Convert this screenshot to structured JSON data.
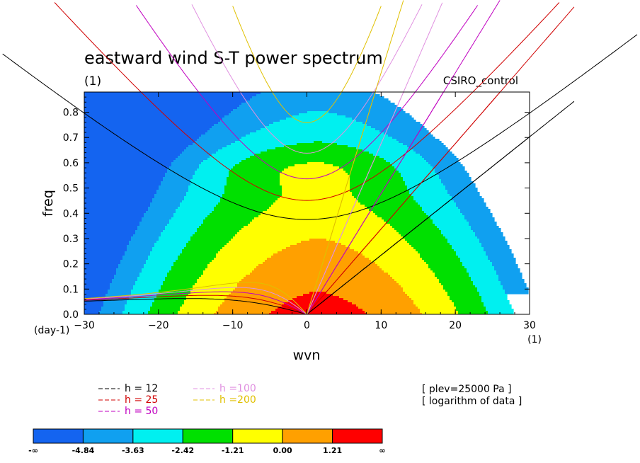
{
  "chart_data": {
    "type": "heatmap",
    "title": "eastward wind S-T power spectrum",
    "subtitle_left": "(1)",
    "subtitle_right": "CSIRO_control",
    "xlabel": "wvn",
    "ylabel": "freq",
    "x_unit": "(1)",
    "y_unit": "(day-1)",
    "xlim": [
      -30,
      30
    ],
    "ylim": [
      0,
      0.88
    ],
    "xticks": [
      -30,
      -20,
      -10,
      0,
      10,
      20,
      30
    ],
    "yticks": [
      0.0,
      0.1,
      0.2,
      0.3,
      0.4,
      0.5,
      0.6,
      0.7,
      0.8
    ],
    "ytick_labels": [
      "0.0",
      "0.1",
      "0.2",
      "0.3",
      "0.4",
      "0.5",
      "0.6",
      "0.7",
      "0.8"
    ],
    "info": [
      "[ plev=25000 Pa ]",
      "[ logarithm of data ]"
    ],
    "colorbar": {
      "colors": [
        "#1464f0",
        "#10a0f0",
        "#00f0f0",
        "#00e000",
        "#ffff00",
        "#ffa000",
        "#ff0000"
      ],
      "labels": [
        "-∞",
        "-4.84",
        "-3.63",
        "-2.42",
        "-1.21",
        "0.00",
        "1.21",
        "∞"
      ]
    },
    "contour_field": {
      "description_levels": [
        -4.84,
        -3.63,
        -2.42,
        -1.21,
        0.0,
        1.21
      ]
    },
    "dispersion_curves": [
      {
        "label": "h = 12",
        "h": 12,
        "color": "#000000"
      },
      {
        "label": "h = 25",
        "h": 25,
        "color": "#d00000"
      },
      {
        "label": "h = 50",
        "h": 50,
        "color": "#c000c0"
      },
      {
        "label": "h =100",
        "h": 100,
        "color": "#e090e0"
      },
      {
        "label": "h =200",
        "h": 200,
        "color": "#e0c000"
      }
    ]
  }
}
